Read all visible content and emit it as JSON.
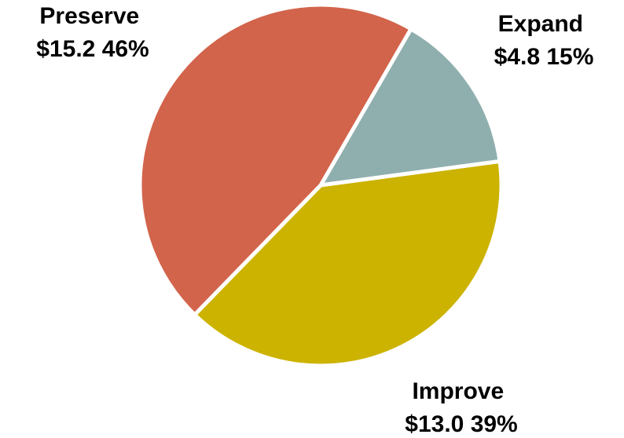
{
  "chart_data": {
    "type": "pie",
    "slices": [
      {
        "name": "Expand",
        "value": 4.8,
        "value_text": "$4.8",
        "percent": 15,
        "percent_text": "15%",
        "color": "#8FAFAE"
      },
      {
        "name": "Improve",
        "value": 13.0,
        "value_text": "$13.0",
        "percent": 39,
        "percent_text": "39%",
        "color": "#CCB300"
      },
      {
        "name": "Preserve",
        "value": 15.2,
        "value_text": "$15.2",
        "percent": 46,
        "percent_text": "46%",
        "color": "#D2644B"
      }
    ],
    "start_angle_degrees": 30,
    "direction": "clockwise",
    "slice_border_color": "#ffffff",
    "legend": "none"
  }
}
